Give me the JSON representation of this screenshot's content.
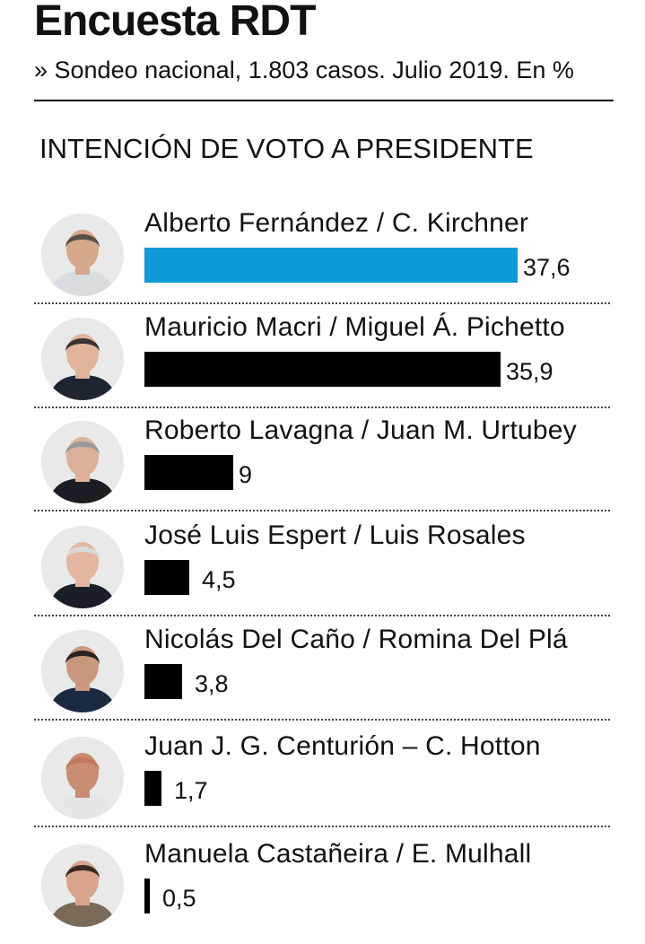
{
  "header": {
    "title": "Encuesta RDT",
    "subtitle": "» Sondeo nacional, 1.803 casos. Julio 2019. En %"
  },
  "chart_data": {
    "type": "bar",
    "orientation": "horizontal",
    "title": "INTENCIÓN DE VOTO A PRESIDENTE",
    "categories": [
      "Alberto Fernández / C. Kirchner",
      "Mauricio Macri / Miguel Á. Pichetto",
      "Roberto Lavagna / Juan M. Urtubey",
      "José Luis Espert / Luis Rosales",
      "Nicolás Del Caño / Romina Del Plá",
      "Juan J. G. Centurión – C. Hotton",
      "Manuela Castañeira / E. Mulhall"
    ],
    "values": [
      37.6,
      35.9,
      9,
      4.5,
      3.8,
      1.7,
      0.5
    ],
    "value_labels": [
      "37,6",
      "35,9",
      "9",
      "4,5",
      "3,8",
      "1,7",
      "0,5"
    ],
    "bar_colors": [
      "#0e9bd8",
      "#000000",
      "#000000",
      "#000000",
      "#000000",
      "#000000",
      "#000000"
    ],
    "avatar_icons": [
      "portrait-icon",
      "portrait-icon",
      "portrait-icon",
      "portrait-icon",
      "portrait-icon",
      "portrait-icon",
      "portrait-icon"
    ]
  }
}
